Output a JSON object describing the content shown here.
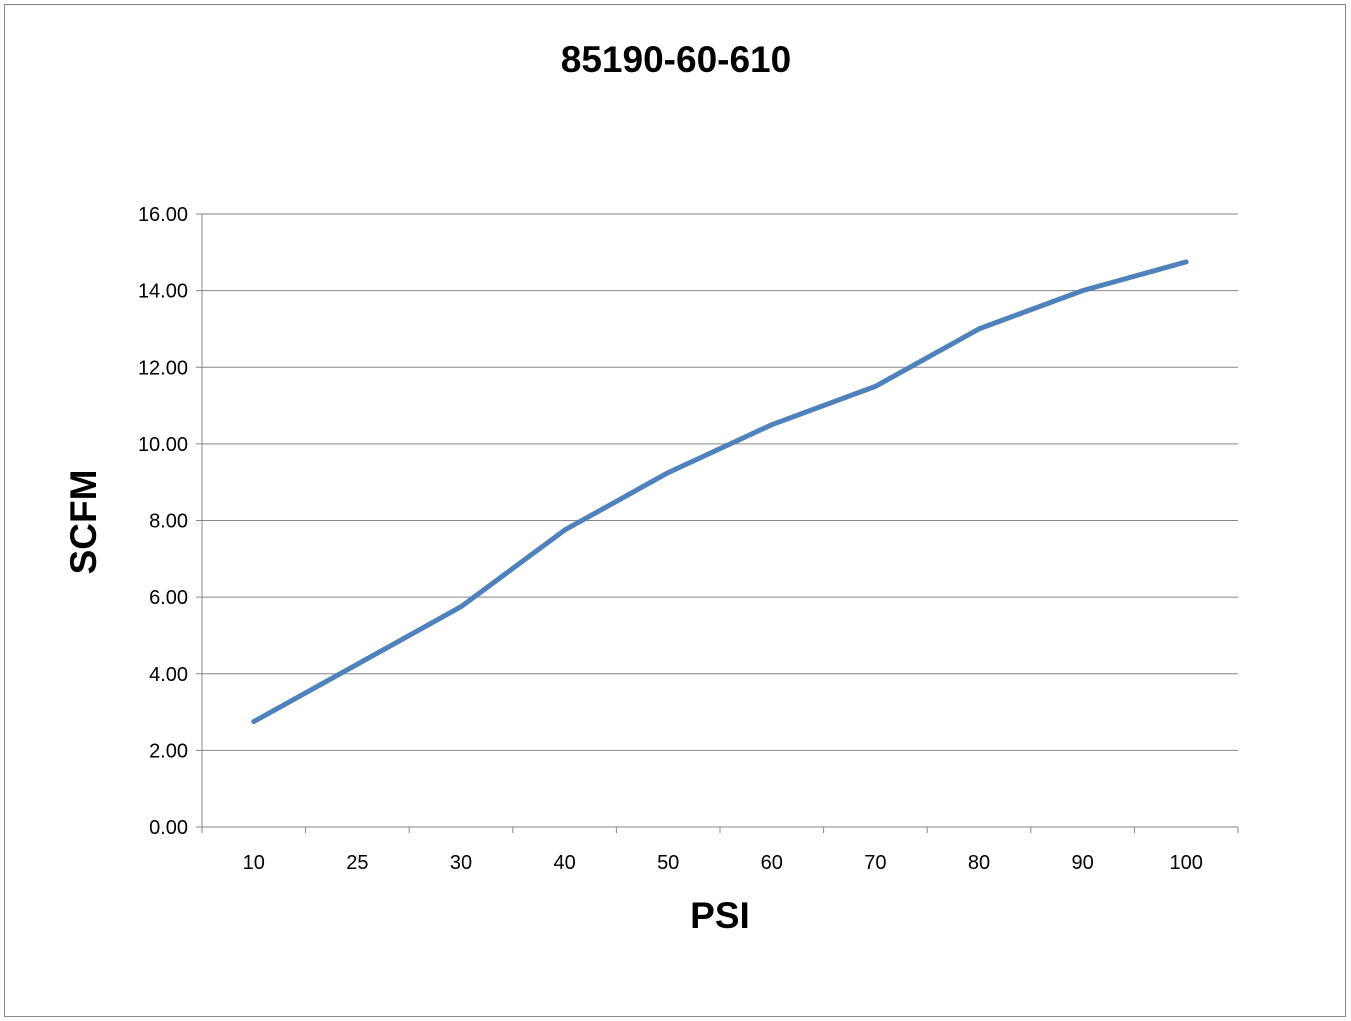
{
  "chart_data": {
    "type": "line",
    "title": "85190-60-610",
    "xlabel": "PSI",
    "ylabel": "SCFM",
    "categories": [
      "10",
      "25",
      "30",
      "40",
      "50",
      "60",
      "70",
      "80",
      "90",
      "100"
    ],
    "series": [
      {
        "values": [
          2.75,
          4.25,
          5.75,
          7.75,
          9.25,
          10.5,
          11.5,
          13.0,
          14.0,
          14.75
        ]
      }
    ],
    "ylim": [
      0,
      16
    ],
    "yticks": [
      "0.00",
      "2.00",
      "4.00",
      "6.00",
      "8.00",
      "10.00",
      "12.00",
      "14.00",
      "16.00"
    ],
    "grid": true,
    "legend": "none",
    "line_color": "#4f81bd"
  }
}
